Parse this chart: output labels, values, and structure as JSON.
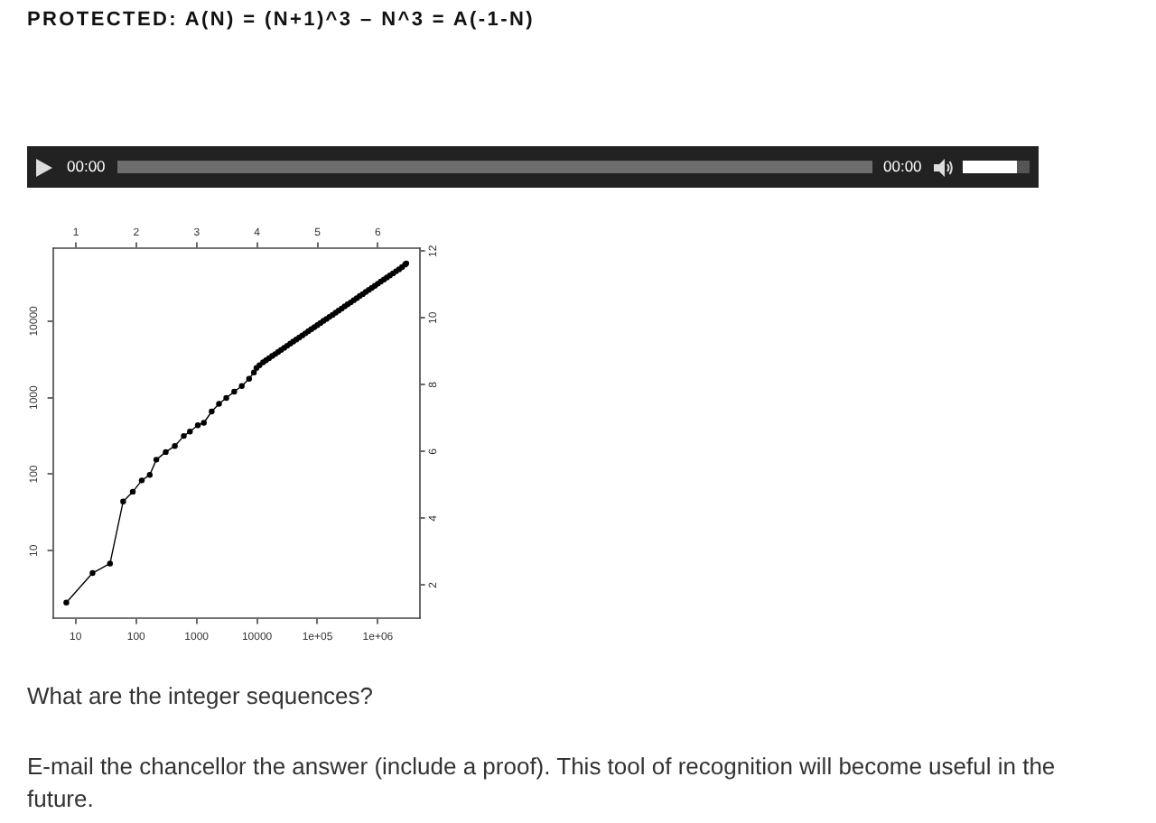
{
  "chart_data": {
    "type": "line",
    "title": "PROTECTED: A(N) = (N+1)^3 – N^3 = A(-1-N)",
    "annotations": [
      "00:00",
      "00:00",
      "What are the integer sequences?",
      "E-mail the chancellor the answer (include a proof). This tool of recognition will become useful in the future."
    ],
    "x": [
      7,
      19,
      37,
      61,
      88,
      124,
      168,
      216,
      309,
      437,
      615,
      776,
      1050,
      1320,
      1780,
      2350,
      3100,
      4200,
      5600,
      7400,
      8900,
      9800,
      11000,
      12600,
      14100,
      15800,
      17800,
      20000,
      22400,
      25100,
      28200,
      31600,
      35500,
      39800,
      44700,
      50100,
      56200,
      63100,
      70800,
      79400,
      89100,
      100000,
      112000,
      126000,
      141000,
      158000,
      178000,
      200000,
      224000,
      251000,
      282000,
      316000,
      355000,
      398000,
      447000,
      501000,
      562000,
      631000,
      708000,
      794000,
      891000,
      1000000,
      1120000,
      1260000,
      1410000,
      1580000,
      1780000,
      2000000,
      2240000,
      2510000,
      2820000,
      2950000
    ],
    "values": [
      2.1,
      5.1,
      6.8,
      44,
      59,
      83,
      98,
      155,
      195,
      234,
      316,
      361,
      437,
      470,
      660,
      830,
      990,
      1200,
      1420,
      1770,
      2140,
      2450,
      2650,
      2900,
      3080,
      3280,
      3500,
      3720,
      3970,
      4220,
      4490,
      4780,
      5090,
      5420,
      5760,
      6130,
      6520,
      6940,
      7390,
      7860,
      8360,
      8900,
      9470,
      10100,
      10700,
      11400,
      12100,
      12900,
      13700,
      14600,
      15600,
      16600,
      17600,
      18800,
      20000,
      21300,
      22600,
      24100,
      25600,
      27300,
      29000,
      30900,
      32900,
      35000,
      37200,
      39600,
      42200,
      44900,
      47700,
      50800,
      55000,
      57000
    ],
    "color": "#000000",
    "marker": "circle",
    "log": "xy",
    "xlim": [
      4.2,
      4900000
    ],
    "xticks": [
      10,
      100,
      1000,
      10000,
      {
        "value": 100000,
        "label": "1e+05"
      },
      {
        "value": 1000000,
        "label": "1e+06"
      }
    ],
    "ylim": [
      1.3,
      91000
    ],
    "yticks": [
      10,
      100,
      1000,
      10000
    ],
    "x2lim": [
      0.62,
      6.69
    ],
    "x2ticks": [
      1,
      2,
      3,
      4,
      5,
      6
    ],
    "y2lim": [
      1,
      12.1
    ],
    "y2ticks": [
      2,
      4,
      6,
      8,
      10,
      12
    ]
  }
}
